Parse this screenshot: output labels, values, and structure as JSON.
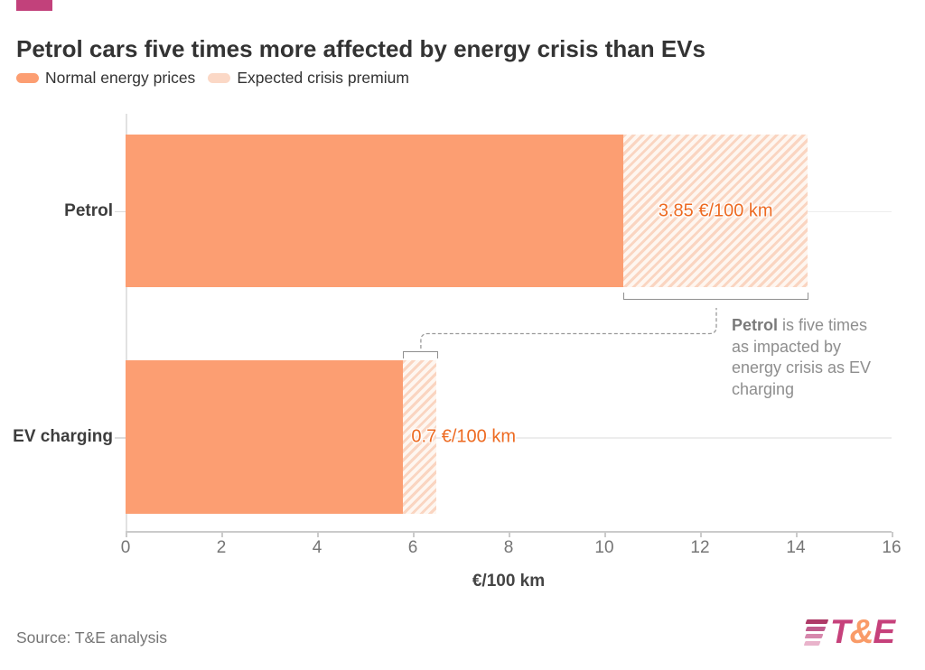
{
  "header": {
    "title": "Petrol cars five times more affected by energy crisis than EVs"
  },
  "legend": {
    "items": [
      {
        "label": "Normal energy prices",
        "swatch": "solid-orange"
      },
      {
        "label": "Expected crisis premium",
        "swatch": "hatched-peach"
      }
    ]
  },
  "chart_data": {
    "type": "bar",
    "orientation": "horizontal",
    "stacked": true,
    "categories": [
      "Petrol",
      "EV charging"
    ],
    "series": [
      {
        "name": "Normal energy prices",
        "style": "solid",
        "values": [
          10.4,
          5.8
        ]
      },
      {
        "name": "Expected crisis premium",
        "style": "hatched",
        "values": [
          3.85,
          0.7
        ]
      }
    ],
    "value_labels": [
      "3.85 €/100 km",
      "0.7 €/100 km"
    ],
    "title": "Petrol cars five times more affected by energy crisis than EVs",
    "xlabel": "€/100 km",
    "ylabel": "",
    "xlim": [
      0,
      16
    ],
    "xticks": [
      0,
      2,
      4,
      6,
      8,
      10,
      12,
      14,
      16
    ],
    "grid": "horizontal category gridlines",
    "legend_position": "top-left",
    "annotation_text": "Petrol is five times as impacted by energy crisis as EV charging"
  },
  "axis": {
    "tick_labels": [
      "0",
      "2",
      "4",
      "6",
      "8",
      "10",
      "12",
      "14",
      "16"
    ],
    "xlabel": "€/100 km"
  },
  "annotation": {
    "bold_word": "Petrol",
    "line1_rest": " is five times",
    "line2": "as impacted by",
    "line3": "energy crisis as EV",
    "line4": "charging"
  },
  "footer": {
    "source": "Source: T&E analysis",
    "logo": {
      "t": "T",
      "amp": "&",
      "e": "E"
    }
  },
  "colors": {
    "accent_magenta": "#C2417B",
    "bar_orange": "#FC9E72",
    "hatch_peach": "#FAD5C1",
    "value_text_orange": "#ED6A21",
    "annotation_gray": "#8E8E8E",
    "logo_magenta": "#C6417B",
    "logo_orange": "#F99B68"
  }
}
